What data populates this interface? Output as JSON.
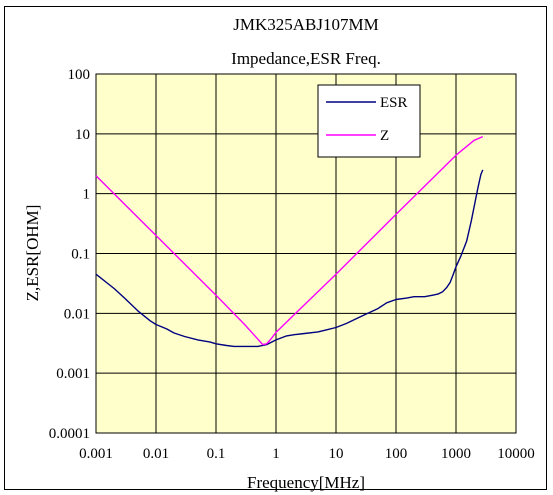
{
  "chart_data": {
    "type": "line",
    "title": "JMK325ABJ107MM",
    "subtitle": "Impedance,ESR Freq.",
    "xlabel": "Frequency[MHz]",
    "ylabel": "Z,ESR[OHM]",
    "x_scale": "log",
    "y_scale": "log",
    "xlim": [
      0.001,
      10000
    ],
    "ylim": [
      0.0001,
      100
    ],
    "x_ticks": [
      "0.001",
      "0.01",
      "0.1",
      "1",
      "10",
      "100",
      "1000",
      "10000"
    ],
    "y_ticks": [
      "100",
      "10",
      "1",
      "0.1",
      "0.01",
      "0.001",
      "0.0001"
    ],
    "grid": true,
    "legend_position": "top-right",
    "plot_background": "#FFFFCC",
    "series": [
      {
        "name": "ESR",
        "color": "#000080",
        "x": [
          0.001,
          0.002,
          0.003,
          0.005,
          0.008,
          0.01,
          0.015,
          0.02,
          0.03,
          0.05,
          0.08,
          0.1,
          0.15,
          0.2,
          0.3,
          0.5,
          0.7,
          1,
          1.5,
          2,
          3,
          5,
          7,
          10,
          15,
          20,
          30,
          50,
          70,
          100,
          150,
          200,
          300,
          400,
          500,
          600,
          700,
          800,
          900,
          1000,
          1200,
          1500,
          1800,
          2000,
          2300,
          2600,
          2800
        ],
        "y": [
          0.045,
          0.026,
          0.018,
          0.011,
          0.0075,
          0.0065,
          0.0055,
          0.0047,
          0.0041,
          0.0036,
          0.0033,
          0.0031,
          0.0029,
          0.0028,
          0.0028,
          0.0028,
          0.003,
          0.0036,
          0.0042,
          0.0044,
          0.0046,
          0.0049,
          0.0053,
          0.0058,
          0.0068,
          0.0078,
          0.0095,
          0.012,
          0.015,
          0.017,
          0.018,
          0.019,
          0.019,
          0.02,
          0.021,
          0.023,
          0.027,
          0.033,
          0.045,
          0.06,
          0.09,
          0.16,
          0.35,
          0.6,
          1.2,
          2.1,
          2.5
        ]
      },
      {
        "name": "Z",
        "color": "#FF00FF",
        "x": [
          0.001,
          0.01,
          0.1,
          0.3,
          0.5,
          0.6,
          0.7,
          0.8,
          1,
          2,
          5,
          10,
          100,
          1000,
          2000,
          2800
        ],
        "y": [
          2.0,
          0.2,
          0.02,
          0.0065,
          0.0037,
          0.003,
          0.0031,
          0.0036,
          0.0048,
          0.0095,
          0.023,
          0.045,
          0.45,
          4.4,
          7.8,
          9.0
        ]
      }
    ]
  }
}
